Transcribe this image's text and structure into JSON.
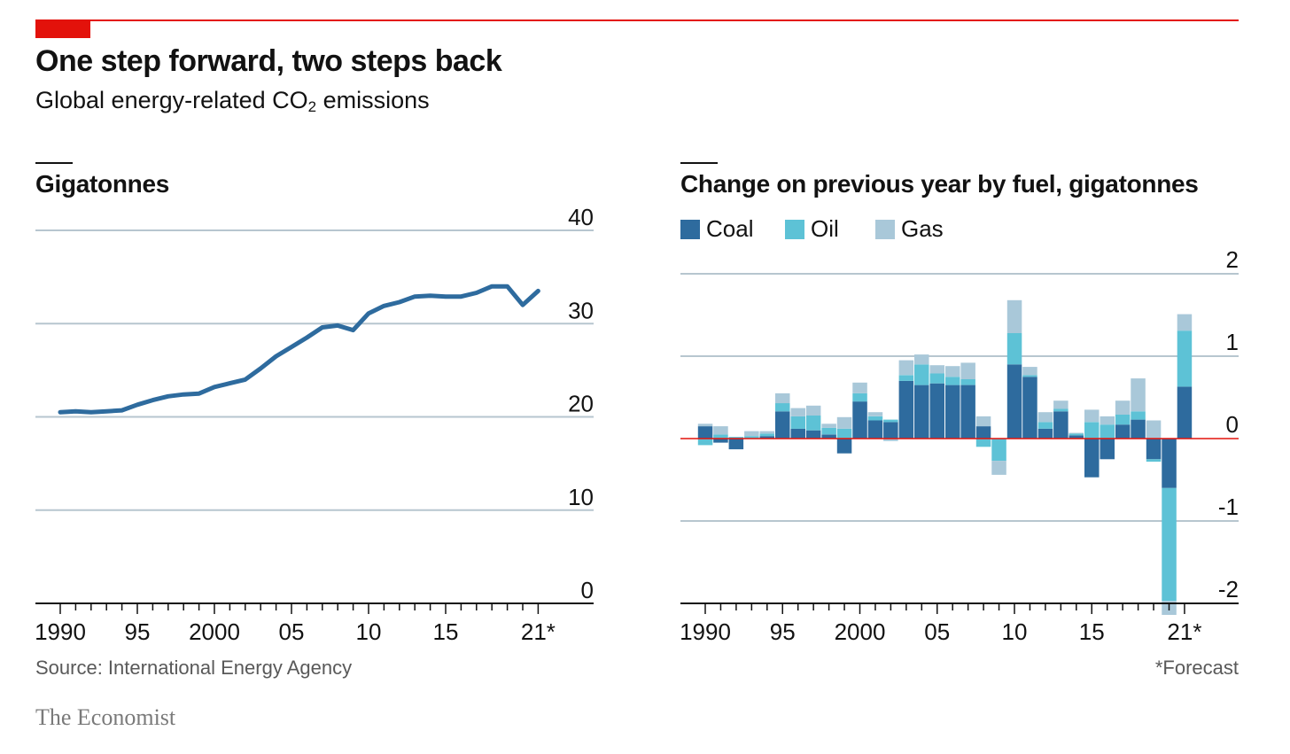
{
  "header": {
    "title": "One step forward, two steps back",
    "subtitle_main": "Global energy-related CO",
    "subtitle_sub": "2",
    "subtitle_end": " emissions"
  },
  "footer": {
    "source": "Source: International Energy Agency",
    "footnote": "*Forecast",
    "brand": "The Economist"
  },
  "colors": {
    "accent_red": "#e3120b",
    "line": "#2e6b9e",
    "coal": "#2e6b9e",
    "oil": "#5dc2d6",
    "gas": "#a9c8d9",
    "grid": "#b7c6cf"
  },
  "chart_data": [
    {
      "type": "line",
      "title": "Gigatonnes",
      "x": [
        1990,
        1991,
        1992,
        1993,
        1994,
        1995,
        1996,
        1997,
        1998,
        1999,
        2000,
        2001,
        2002,
        2003,
        2004,
        2005,
        2006,
        2007,
        2008,
        2009,
        2010,
        2011,
        2012,
        2013,
        2014,
        2015,
        2016,
        2017,
        2018,
        2019,
        2020,
        2021
      ],
      "series": [
        {
          "values": [
            20.5,
            20.6,
            20.5,
            20.6,
            20.7,
            21.3,
            21.8,
            22.2,
            22.4,
            22.5,
            23.2,
            23.6,
            24.0,
            25.2,
            26.5,
            27.5,
            28.5,
            29.6,
            29.8,
            29.3,
            31.1,
            31.9,
            32.3,
            32.9,
            33.0,
            32.9,
            32.9,
            33.3,
            34.0,
            34.0,
            32.0,
            33.5
          ]
        }
      ],
      "ylim": [
        0,
        40
      ],
      "yticks": [
        0,
        10,
        20,
        30,
        40
      ],
      "ytick_labels": [
        "0",
        "10",
        "20",
        "30",
        "40"
      ],
      "xticks": [
        1990,
        1995,
        2000,
        2005,
        2010,
        2015,
        2021
      ],
      "xtick_labels": [
        "1990",
        "95",
        "2000",
        "05",
        "10",
        "15",
        "21*"
      ],
      "grid": true
    },
    {
      "type": "bar",
      "stacked": true,
      "title": "Change on previous year by fuel, gigatonnes",
      "legend": "top-left",
      "x": [
        1990,
        1991,
        1992,
        1993,
        1994,
        1995,
        1996,
        1997,
        1998,
        1999,
        2000,
        2001,
        2002,
        2003,
        2004,
        2005,
        2006,
        2007,
        2008,
        2009,
        2010,
        2011,
        2012,
        2013,
        2014,
        2015,
        2016,
        2017,
        2018,
        2019,
        2020,
        2021
      ],
      "series": [
        {
          "name": "Coal",
          "values": [
            0.15,
            -0.05,
            -0.13,
            0.0,
            0.03,
            0.33,
            0.12,
            0.1,
            0.05,
            -0.18,
            0.45,
            0.22,
            0.2,
            0.7,
            0.65,
            0.67,
            0.65,
            0.65,
            0.15,
            0.0,
            0.9,
            0.75,
            0.12,
            0.33,
            0.04,
            -0.47,
            -0.25,
            0.17,
            0.23,
            -0.25,
            -0.6,
            0.63
          ]
        },
        {
          "name": "Oil",
          "values": [
            -0.08,
            0.05,
            0.02,
            0.03,
            0.03,
            0.1,
            0.15,
            0.18,
            0.08,
            0.12,
            0.1,
            0.05,
            0.03,
            0.07,
            0.25,
            0.12,
            0.1,
            0.07,
            -0.1,
            -0.27,
            0.38,
            0.02,
            0.08,
            0.03,
            0.02,
            0.2,
            0.17,
            0.12,
            0.1,
            -0.03,
            -1.37,
            0.68
          ]
        },
        {
          "name": "Gas",
          "values": [
            0.03,
            0.1,
            0.0,
            0.06,
            0.03,
            0.12,
            0.1,
            0.12,
            0.05,
            0.14,
            0.13,
            0.05,
            -0.03,
            0.18,
            0.12,
            0.1,
            0.13,
            0.2,
            0.12,
            -0.17,
            0.4,
            0.1,
            0.12,
            0.1,
            0.01,
            0.15,
            0.1,
            0.17,
            0.4,
            0.22,
            -0.17,
            0.2
          ]
        }
      ],
      "ylim": [
        -2,
        2
      ],
      "yticks": [
        -2,
        -1,
        0,
        1,
        2
      ],
      "ytick_labels": [
        "-2",
        "-1",
        "0",
        "1",
        "2"
      ],
      "xticks": [
        1990,
        1995,
        2000,
        2005,
        2010,
        2015,
        2021
      ],
      "xtick_labels": [
        "1990",
        "95",
        "2000",
        "05",
        "10",
        "15",
        "21*"
      ],
      "grid": true
    }
  ]
}
